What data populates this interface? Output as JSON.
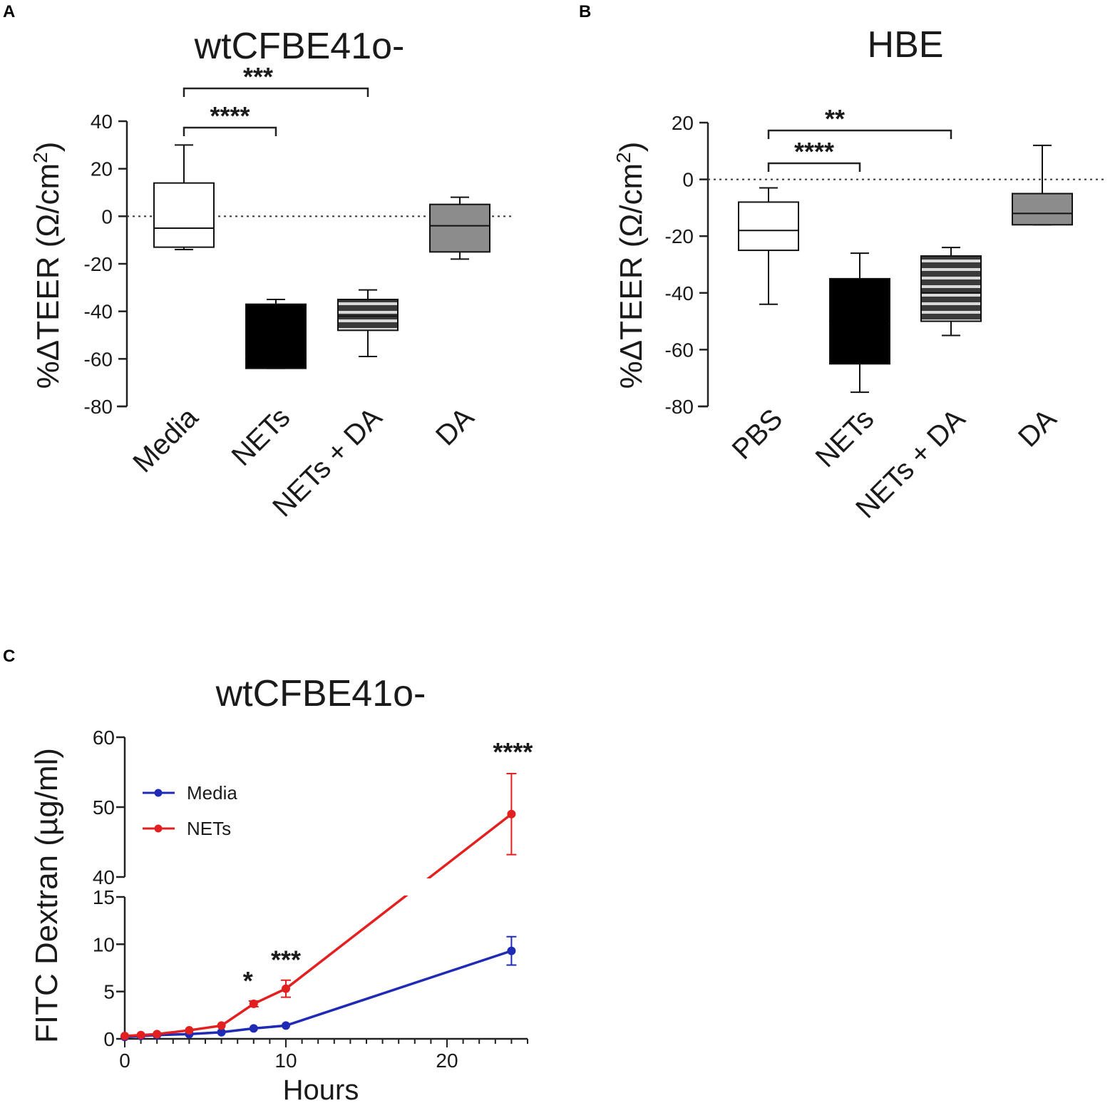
{
  "panels": {
    "a_letter": "A",
    "b_letter": "B",
    "c_letter": "C"
  },
  "chart_data": [
    {
      "id": "A",
      "type": "box",
      "title": "wtCFBE41o-",
      "ylabel": "%ΔTEER (Ω/cm²)",
      "ylabel_parts": {
        "main": "%ΔTEER (Ω/cm",
        "sup": "2",
        "close": ")"
      },
      "ylim": [
        -80,
        40
      ],
      "yticks": [
        40,
        20,
        0,
        -20,
        -40,
        -60,
        -80
      ],
      "reference_line": 0,
      "categories": [
        "Media",
        "NETs",
        "NETs + DA",
        "DA"
      ],
      "boxes": [
        {
          "name": "Media",
          "min": -14,
          "q1": -13,
          "median": -5,
          "q3": 14,
          "max": 30,
          "fill": "white"
        },
        {
          "name": "NETs",
          "min": -64,
          "q1": -64,
          "median": -60,
          "q3": -37,
          "max": -35,
          "fill": "black"
        },
        {
          "name": "NETs + DA",
          "min": -59,
          "q1": -48,
          "median": -42,
          "q3": -35,
          "max": -31,
          "fill": "striped"
        },
        {
          "name": "DA",
          "min": -18,
          "q1": -15,
          "median": -4,
          "q3": 5,
          "max": 8,
          "fill": "gray"
        }
      ],
      "significance": [
        {
          "from": "Media",
          "to": "NETs",
          "label": "****"
        },
        {
          "from": "Media",
          "to": "NETs + DA",
          "label": "***"
        }
      ]
    },
    {
      "id": "B",
      "type": "box",
      "title": "HBE",
      "ylabel": "%ΔTEER (Ω/cm²)",
      "ylabel_parts": {
        "main": "%ΔTEER (Ω/cm",
        "sup": "2",
        "close": ")"
      },
      "ylim": [
        -80,
        20
      ],
      "yticks": [
        20,
        0,
        -20,
        -40,
        -60,
        -80
      ],
      "reference_line": 0,
      "categories": [
        "PBS",
        "NETs",
        "NETs + DA",
        "DA"
      ],
      "boxes": [
        {
          "name": "PBS",
          "min": -44,
          "q1": -25,
          "median": -18,
          "q3": -8,
          "max": -3,
          "fill": "white"
        },
        {
          "name": "NETs",
          "min": -75,
          "q1": -65,
          "median": -50,
          "q3": -35,
          "max": -26,
          "fill": "black"
        },
        {
          "name": "NETs + DA",
          "min": -55,
          "q1": -50,
          "median": -40,
          "q3": -27,
          "max": -24,
          "fill": "striped"
        },
        {
          "name": "DA",
          "min": -16,
          "q1": -16,
          "median": -12,
          "q3": -5,
          "max": 12,
          "fill": "gray"
        }
      ],
      "significance": [
        {
          "from": "PBS",
          "to": "NETs",
          "label": "****"
        },
        {
          "from": "PBS",
          "to": "NETs + DA",
          "label": "**"
        }
      ]
    },
    {
      "id": "C",
      "type": "line",
      "title": "wtCFBE41o-",
      "xlabel": "Hours",
      "ylabel": "FITC Dextran (µg/ml)",
      "xlim": [
        0,
        25
      ],
      "xticks": [
        0,
        10,
        20
      ],
      "broken_y_axis": {
        "lower": [
          0,
          15
        ],
        "upper": [
          40,
          60
        ]
      },
      "yticks_lower": [
        0,
        5,
        10,
        15
      ],
      "yticks_upper": [
        40,
        50,
        60
      ],
      "legend_position": "top-left",
      "series": [
        {
          "name": "Media",
          "color": "#1f2bb5",
          "x": [
            0,
            1,
            2,
            4,
            6,
            8,
            10,
            24
          ],
          "y": [
            0.2,
            0.3,
            0.4,
            0.5,
            0.7,
            1.1,
            1.4,
            9.3
          ],
          "err": [
            0.05,
            0.05,
            0.05,
            0.1,
            0.1,
            0.15,
            0.2,
            1.5
          ]
        },
        {
          "name": "NETs",
          "color": "#e32020",
          "x": [
            0,
            1,
            2,
            4,
            6,
            8,
            10,
            24
          ],
          "y": [
            0.3,
            0.4,
            0.5,
            0.9,
            1.4,
            3.7,
            5.3,
            49
          ],
          "err": [
            0.05,
            0.05,
            0.1,
            0.15,
            0.2,
            0.3,
            0.9,
            5.8
          ]
        }
      ],
      "annotations": [
        {
          "x": 8,
          "label": "*"
        },
        {
          "x": 10,
          "label": "***"
        },
        {
          "x": 24,
          "label": "****"
        }
      ]
    }
  ]
}
